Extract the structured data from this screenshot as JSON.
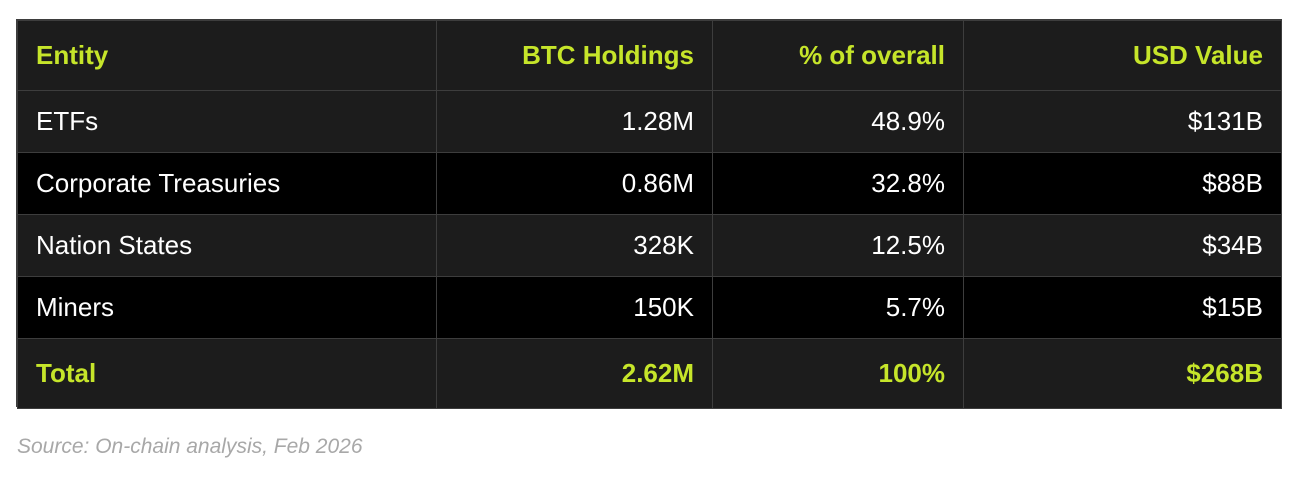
{
  "table": {
    "headers": [
      "Entity",
      "BTC Holdings",
      "% of overall",
      "USD Value"
    ],
    "rows": [
      {
        "entity": "ETFs",
        "btc": "1.28M",
        "pct": "48.9%",
        "usd": "$131B"
      },
      {
        "entity": "Corporate Treasuries",
        "btc": "0.86M",
        "pct": "32.8%",
        "usd": "$88B"
      },
      {
        "entity": "Nation States",
        "btc": "328K",
        "pct": "12.5%",
        "usd": "$34B"
      },
      {
        "entity": "Miners",
        "btc": "150K",
        "pct": "5.7%",
        "usd": "$15B"
      }
    ],
    "total": {
      "entity": "Total",
      "btc": "2.62M",
      "pct": "100%",
      "usd": "$268B"
    }
  },
  "source": "Source: On-chain analysis, Feb 2026",
  "colors": {
    "accent": "#c6e52a",
    "row_dark": "#000000",
    "row_light": "#1c1c1c",
    "border": "#3d3d3d",
    "caption": "#a8a8a8"
  }
}
